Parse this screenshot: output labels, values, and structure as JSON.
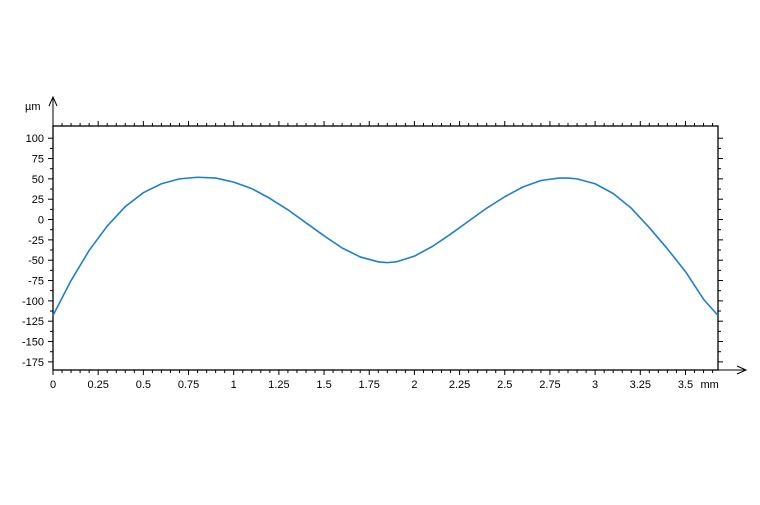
{
  "chart_data": {
    "type": "line",
    "title": "",
    "xlabel": "",
    "ylabel": "",
    "x_unit": "mm",
    "y_unit": "µm",
    "xlim": [
      0,
      3.68
    ],
    "ylim": [
      -185,
      115
    ],
    "x_ticks": [
      "0",
      "0.25",
      "0.5",
      "0.75",
      "1",
      "1.25",
      "1.5",
      "1.75",
      "2",
      "2.25",
      "2.5",
      "2.75",
      "3",
      "3.25",
      "3.5"
    ],
    "y_ticks": [
      "100",
      "75",
      "50",
      "25",
      "0",
      "-25",
      "-50",
      "-75",
      "-100",
      "-125",
      "-150",
      "-175"
    ],
    "grid": false,
    "series": [
      {
        "color": "#1f7fcf",
        "x": [
          0,
          0.1,
          0.2,
          0.3,
          0.4,
          0.5,
          0.6,
          0.7,
          0.8,
          0.9,
          1.0,
          1.1,
          1.2,
          1.3,
          1.4,
          1.5,
          1.6,
          1.7,
          1.8,
          1.85,
          1.9,
          2.0,
          2.1,
          2.2,
          2.3,
          2.4,
          2.5,
          2.6,
          2.7,
          2.8,
          2.85,
          2.9,
          3.0,
          3.1,
          3.2,
          3.3,
          3.4,
          3.5,
          3.6,
          3.68
        ],
        "y": [
          -118,
          -75,
          -38,
          -8,
          16,
          33,
          44,
          50,
          52,
          51,
          46,
          38,
          26,
          12,
          -4,
          -20,
          -35,
          -46,
          -52,
          -53,
          -52,
          -45,
          -33,
          -18,
          -2,
          14,
          28,
          40,
          48,
          51,
          51,
          50,
          44,
          32,
          14,
          -10,
          -36,
          -64,
          -98,
          -118
        ]
      }
    ]
  }
}
